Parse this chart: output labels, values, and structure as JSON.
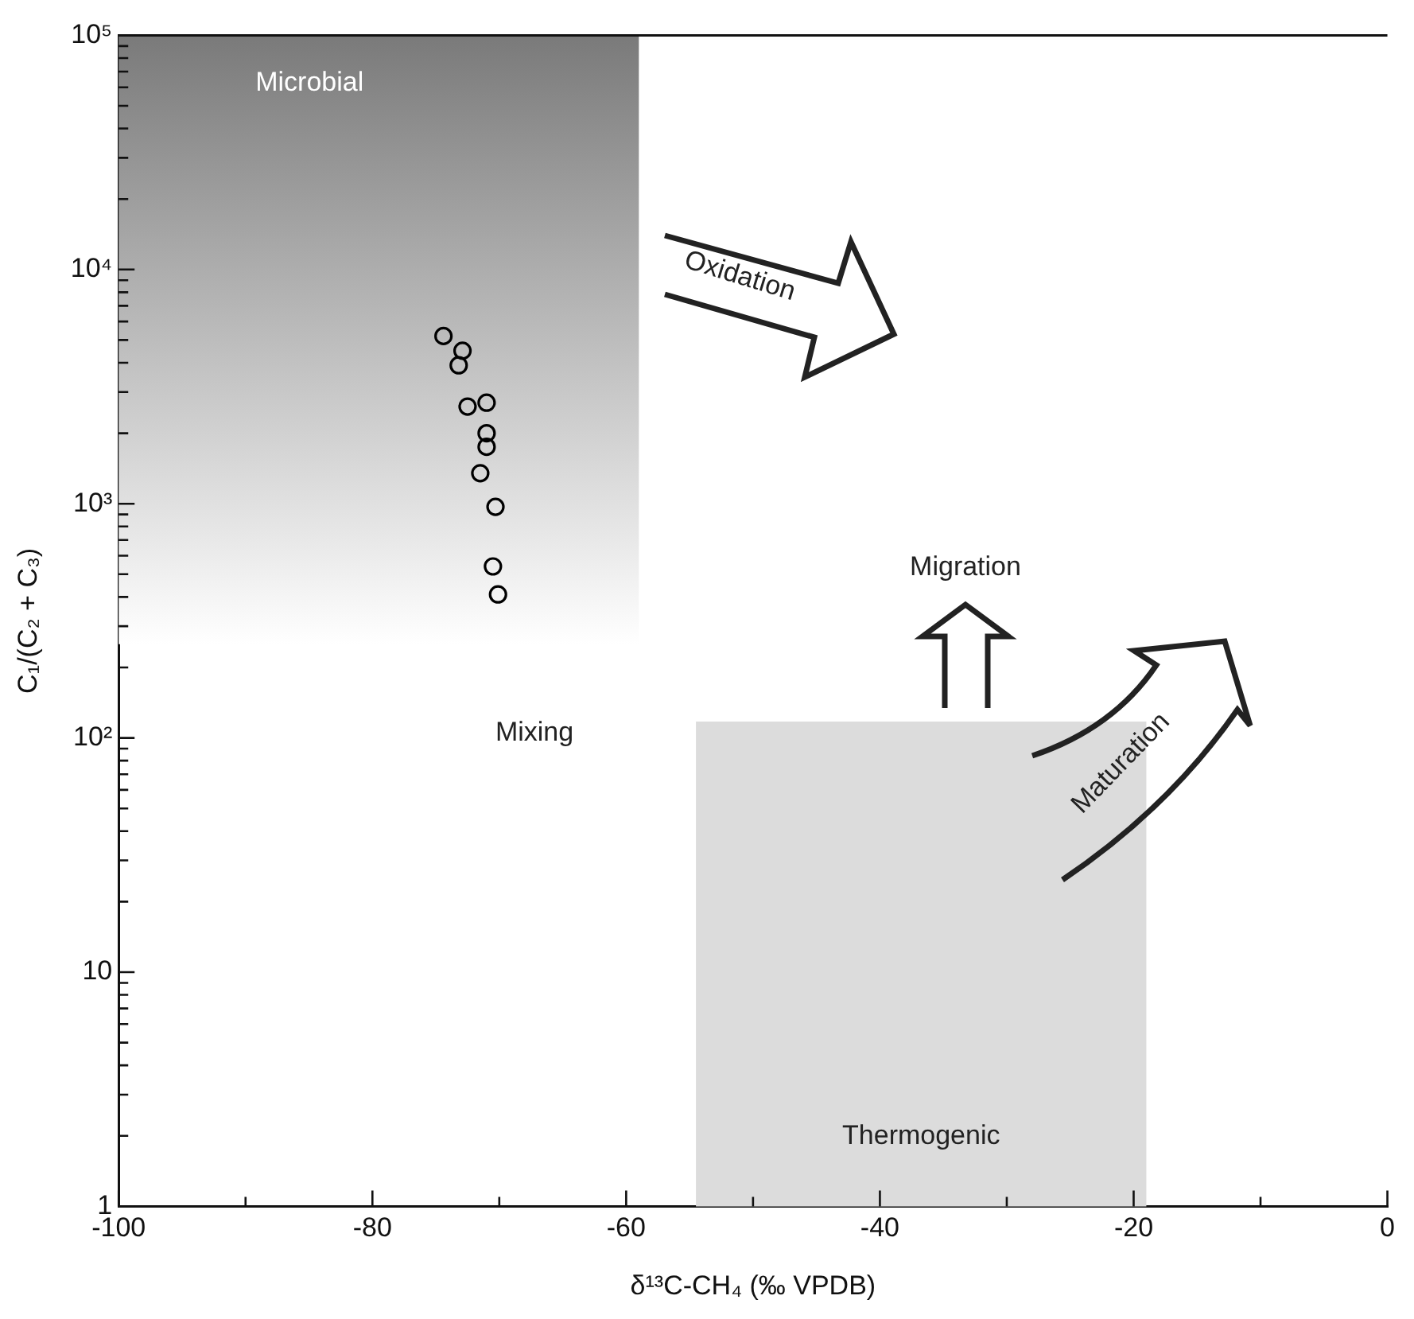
{
  "chart_data": {
    "type": "scatter",
    "xlabel": "δ¹³C-CH₄ (‰ VPDB)",
    "ylabel": "C₁/(C₂ + C₃)",
    "x": [
      -74.4,
      -72.9,
      -73.2,
      -72.5,
      -71.0,
      -71.0,
      -71.0,
      -71.5,
      -70.3,
      -70.5,
      -70.1
    ],
    "values": [
      5200,
      4500,
      3900,
      2600,
      2700,
      2000,
      1750,
      1350,
      970,
      540,
      410
    ],
    "color": "#000000",
    "marker": "circle",
    "log": "y",
    "xlim": [
      -100,
      0
    ],
    "xticks": [
      -100,
      {
        "value": -90,
        "label": null
      },
      -80,
      {
        "value": -70,
        "label": null
      },
      -60,
      {
        "value": -50,
        "label": null
      },
      -40,
      {
        "value": -30,
        "label": null
      },
      -20,
      {
        "value": -10,
        "label": null
      },
      0
    ],
    "ylim": [
      1,
      100000
    ],
    "yticks": [
      1,
      {
        "value": 2,
        "label": null
      },
      {
        "value": 3,
        "label": null
      },
      {
        "value": 4,
        "label": null
      },
      {
        "value": 5,
        "label": null
      },
      {
        "value": 6,
        "label": null
      },
      {
        "value": 7,
        "label": null
      },
      {
        "value": 8,
        "label": null
      },
      {
        "value": 9,
        "label": null
      },
      10,
      {
        "value": 20,
        "label": null
      },
      {
        "value": 30,
        "label": null
      },
      {
        "value": 40,
        "label": null
      },
      {
        "value": 50,
        "label": null
      },
      {
        "value": 60,
        "label": null
      },
      {
        "value": 70,
        "label": null
      },
      {
        "value": 80,
        "label": null
      },
      {
        "value": 90,
        "label": null
      },
      {
        "value": 100,
        "label": "10²"
      },
      {
        "value": 200,
        "label": null
      },
      {
        "value": 300,
        "label": null
      },
      {
        "value": 400,
        "label": null
      },
      {
        "value": 500,
        "label": null
      },
      {
        "value": 600,
        "label": null
      },
      {
        "value": 700,
        "label": null
      },
      {
        "value": 800,
        "label": null
      },
      {
        "value": 900,
        "label": null
      },
      {
        "value": 1000,
        "label": "10³"
      },
      {
        "value": 2000,
        "label": null
      },
      {
        "value": 3000,
        "label": null
      },
      {
        "value": 4000,
        "label": null
      },
      {
        "value": 5000,
        "label": null
      },
      {
        "value": 6000,
        "label": null
      },
      {
        "value": 7000,
        "label": null
      },
      {
        "value": 8000,
        "label": null
      },
      {
        "value": 9000,
        "label": null
      },
      {
        "value": 10000,
        "label": "10⁴"
      },
      {
        "value": 20000,
        "label": null
      },
      {
        "value": 30000,
        "label": null
      },
      {
        "value": 40000,
        "label": null
      },
      {
        "value": 50000,
        "label": null
      },
      {
        "value": 60000,
        "label": null
      },
      {
        "value": 70000,
        "label": null
      },
      {
        "value": 80000,
        "label": null
      },
      {
        "value": 90000,
        "label": null
      },
      {
        "value": 100000,
        "label": "10⁵"
      }
    ],
    "bands": [
      {
        "axis": "x",
        "from": -100,
        "to": -59,
        "label": "Microbial",
        "color": "#7a7a7a"
      },
      {
        "axis": "x",
        "from": -54.5,
        "to": -19,
        "label": "Thermogenic",
        "color": "#dcdcdc"
      }
    ],
    "annotations": [
      "Mixing",
      "Oxidation",
      "Migration",
      "Maturation"
    ],
    "grid": false,
    "legend": false
  }
}
